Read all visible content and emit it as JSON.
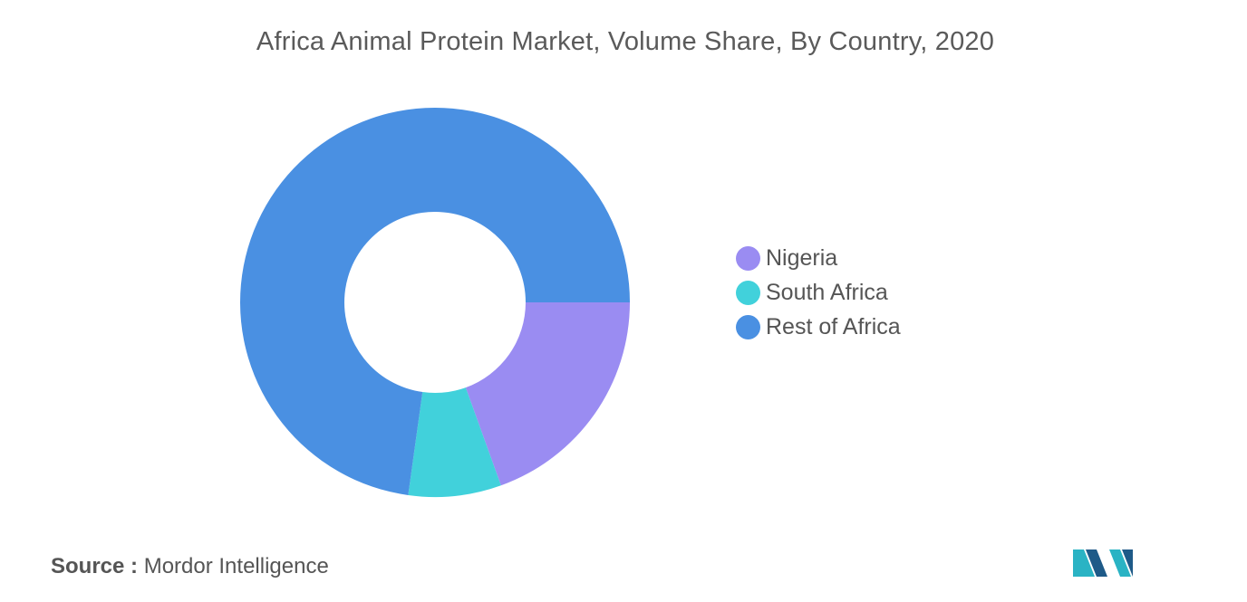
{
  "chart_data": {
    "type": "pie",
    "title": "Africa Animal Protein Market, Volume Share, By Country, 2020",
    "donut": true,
    "categories": [
      "Nigeria",
      "South Africa",
      "Rest of Africa"
    ],
    "values": [
      19.5,
      7.7,
      72.8
    ],
    "colors": [
      "#9a8cf2",
      "#41d1db",
      "#4a90e2"
    ],
    "legend_position": "right"
  },
  "source": {
    "label": "Source :",
    "text": "Mordor Intelligence"
  },
  "logo": {
    "name": "mordor-intelligence-logo",
    "colors": [
      "#2ab3c4",
      "#1e5a88"
    ]
  }
}
